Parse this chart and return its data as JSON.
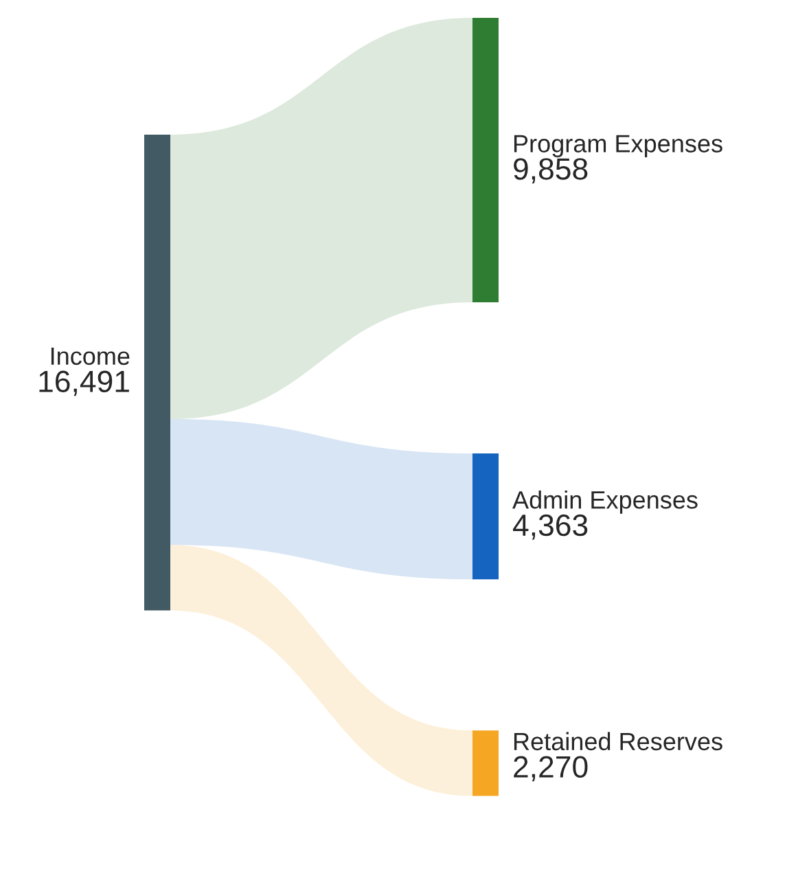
{
  "chart_data": {
    "type": "other",
    "categories": [
      "Income",
      "Program Expenses",
      "Admin Expenses",
      "Retained Reserves"
    ],
    "values": [
      16491,
      9858,
      4363,
      2270
    ],
    "value_labels": [
      "16,491",
      "9,858",
      "4,363",
      "2,270"
    ],
    "colors": [
      "#425a63",
      "#2e7d32",
      "#1565c0",
      "#f5a623"
    ]
  }
}
